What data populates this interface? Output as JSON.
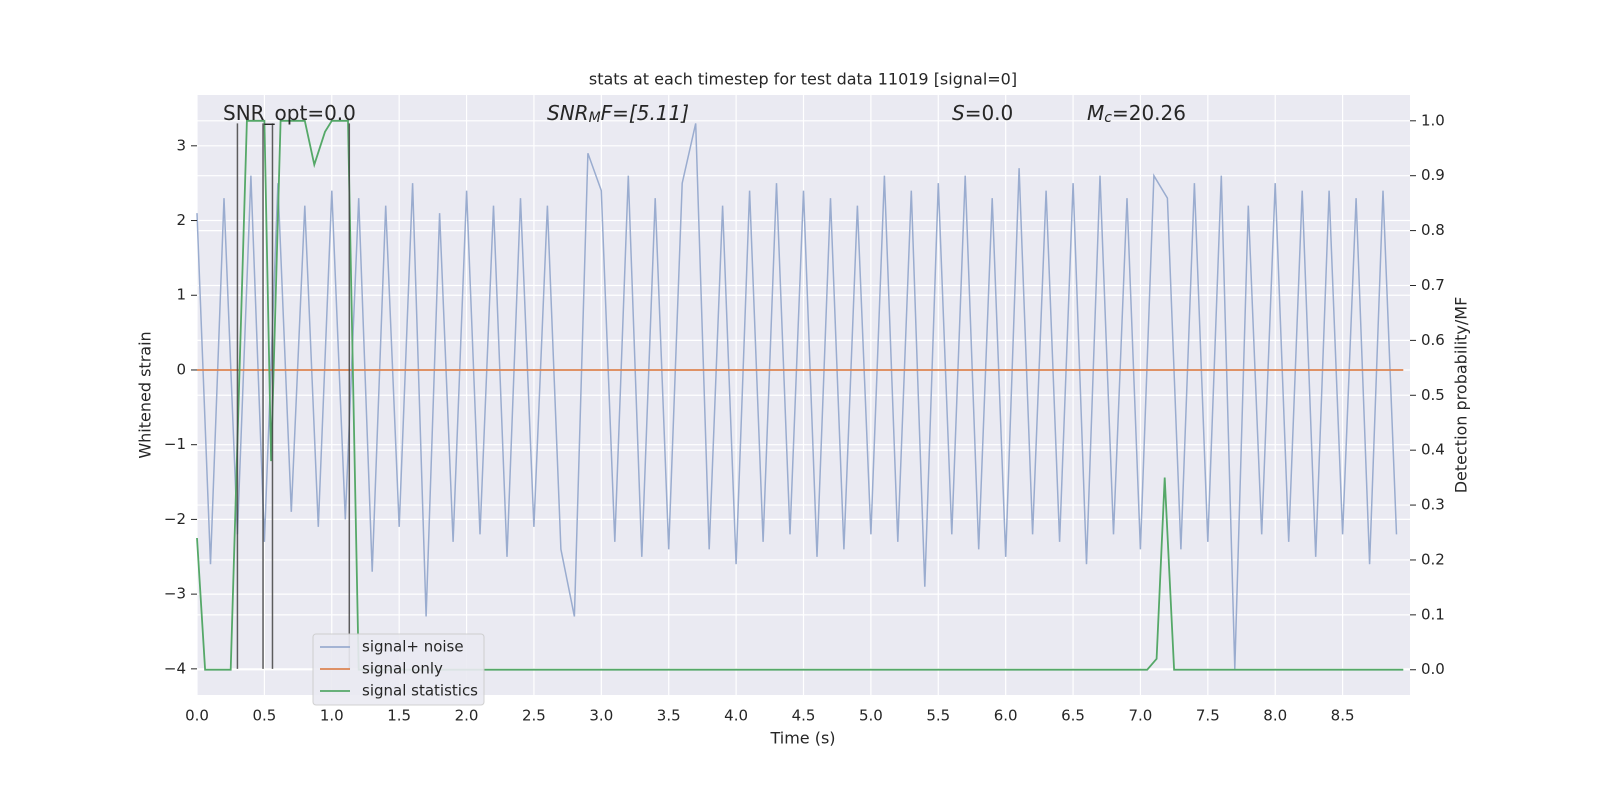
{
  "chart_data": {
    "type": "line",
    "title": "stats at each timestep for test data 11019 [signal=0]",
    "xlabel": "Time (s)",
    "ylabel": "Whitened strain",
    "y2label": "Detection probability/MF",
    "annotations": [
      {
        "base": "SNR_opt=0.0"
      },
      {
        "base": "SNR",
        "sub": "M",
        "rest": "F=[5.11]"
      },
      {
        "base": "S",
        "rest": "=0.0"
      },
      {
        "base": "M",
        "sub": "c",
        "rest": "=20.26"
      }
    ],
    "xlim": [
      0,
      9
    ],
    "ylim": [
      -4.35,
      3.68
    ],
    "y2lim": [
      -0.046,
      1.047
    ],
    "grid": true,
    "xticks": [
      {
        "value": 0,
        "label": "0.0"
      },
      0.5,
      {
        "value": 1,
        "label": "1.0"
      },
      1.5,
      {
        "value": 2,
        "label": "2.0"
      },
      2.5,
      {
        "value": 3,
        "label": "3.0"
      },
      3.5,
      {
        "value": 4,
        "label": "4.0"
      },
      4.5,
      {
        "value": 5,
        "label": "5.0"
      },
      5.5,
      {
        "value": 6,
        "label": "6.0"
      },
      6.5,
      {
        "value": 7,
        "label": "7.0"
      },
      7.5,
      {
        "value": 8,
        "label": "8.0"
      },
      8.5
    ],
    "yticks": [
      {
        "value": -4,
        "label": "−4"
      },
      {
        "value": -3,
        "label": "−3"
      },
      {
        "value": -2,
        "label": "−2"
      },
      {
        "value": -1,
        "label": "−1"
      },
      0,
      1,
      2,
      3
    ],
    "y2ticks": [
      {
        "value": 0,
        "label": "0.0"
      },
      0.1,
      0.2,
      0.3,
      0.4,
      0.5,
      0.6,
      0.7,
      0.8,
      0.9,
      {
        "value": 1,
        "label": "1.0"
      }
    ],
    "vlines": [
      0.3,
      0.49,
      0.56,
      1.13
    ],
    "vline_range": [
      -4,
      3.3
    ],
    "series": [
      {
        "name": "signal+ noise",
        "color": "#9aaccf",
        "x": [
          0,
          0.1,
          0.2,
          0.3,
          0.4,
          0.5,
          0.6,
          0.7,
          0.8,
          0.9,
          1,
          1.1,
          1.2,
          1.3,
          1.4,
          1.5,
          1.6,
          1.7,
          1.8,
          1.9,
          2,
          2.1,
          2.2,
          2.3,
          2.4,
          2.5,
          2.6,
          2.7,
          2.8,
          2.9,
          3,
          3.1,
          3.2,
          3.3,
          3.4,
          3.5,
          3.6,
          3.7,
          3.8,
          3.9,
          4,
          4.1,
          4.2,
          4.3,
          4.4,
          4.5,
          4.6,
          4.7,
          4.8,
          4.9,
          5,
          5.1,
          5.2,
          5.3,
          5.4,
          5.5,
          5.6,
          5.7,
          5.8,
          5.9,
          6,
          6.1,
          6.2,
          6.3,
          6.4,
          6.5,
          6.6,
          6.7,
          6.8,
          6.9,
          7,
          7.1,
          7.2,
          7.3,
          7.4,
          7.5,
          7.6,
          7.7,
          7.8,
          7.9,
          8,
          8.1,
          8.2,
          8.3,
          8.4,
          8.5,
          8.6,
          8.7,
          8.8,
          8.9
        ],
        "values": [
          2.1,
          -2.6,
          2.3,
          -2.2,
          2.6,
          -2.3,
          2.5,
          -1.9,
          2.2,
          -2.1,
          2.4,
          -2.0,
          2.3,
          -2.7,
          2.2,
          -2.1,
          2.5,
          -3.3,
          2.1,
          -2.3,
          2.4,
          -2.2,
          2.2,
          -2.5,
          2.3,
          -2.1,
          2.2,
          -2.4,
          -3.3,
          2.9,
          2.4,
          -2.3,
          2.6,
          -2.5,
          2.3,
          -2.4,
          2.5,
          3.3,
          -2.4,
          2.2,
          -2.6,
          2.4,
          -2.3,
          2.5,
          -2.2,
          2.4,
          -2.5,
          2.3,
          -2.4,
          2.2,
          -2.2,
          2.6,
          -2.3,
          2.4,
          -2.9,
          2.5,
          -2.2,
          2.6,
          -2.4,
          2.3,
          -2.5,
          2.7,
          -2.2,
          2.4,
          -2.3,
          2.5,
          -2.6,
          2.6,
          -2.2,
          2.3,
          -2.4,
          2.6,
          2.3,
          -2.4,
          2.5,
          -2.3,
          2.6,
          -4.0,
          2.2,
          -2.2,
          2.5,
          -2.3,
          2.4,
          -2.5,
          2.4,
          -2.2,
          2.3,
          -2.6,
          2.4,
          -2.2
        ]
      },
      {
        "name": "signal only",
        "color": "#dd8452",
        "x": [
          0,
          8.95
        ],
        "values": [
          0,
          0
        ]
      },
      {
        "name": "signal statistics",
        "color": "#55a868",
        "axis": "y2",
        "x": [
          0,
          0.06,
          0.25,
          0.37,
          0.5,
          0.55,
          0.62,
          0.8,
          0.87,
          0.95,
          1.0,
          1.12,
          1.2,
          7.05,
          7.12,
          7.18,
          7.25,
          8.95
        ],
        "values": [
          0.24,
          0.0,
          0.0,
          1.0,
          1.0,
          0.38,
          1.0,
          1.0,
          0.92,
          0.98,
          1.0,
          1.0,
          0.0,
          0.0,
          0.02,
          0.35,
          0.0,
          0.0
        ]
      }
    ]
  }
}
